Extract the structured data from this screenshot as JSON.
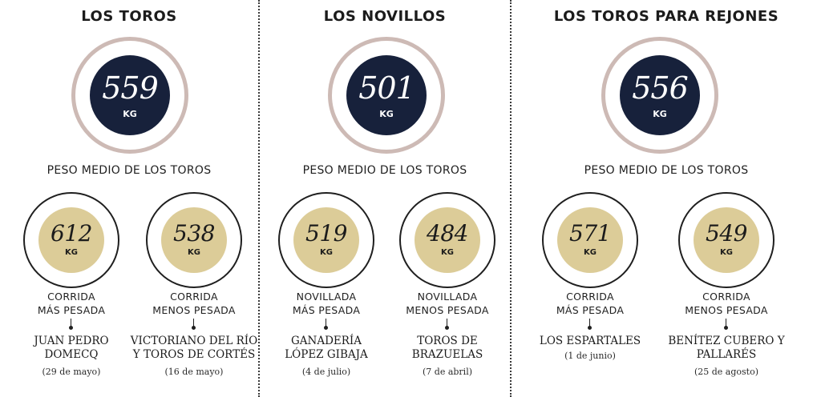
{
  "sections": [
    {
      "title": "LOS TOROS",
      "avg_value": "559",
      "avg_unit": "KG",
      "avg_label": "PESO MEDIO DE LOS TOROS",
      "items": [
        {
          "value": "612",
          "unit": "KG",
          "cat1": "CORRIDA",
          "cat2": "MÁS PESADA",
          "name1": "JUAN PEDRO",
          "name2": "DOMECQ",
          "date": "(29 de mayo)"
        },
        {
          "value": "538",
          "unit": "KG",
          "cat1": "CORRIDA",
          "cat2": "MENOS PESADA",
          "name1": "VICTORIANO DEL RÍO",
          "name2": "Y TOROS DE CORTÉS",
          "date": "(16 de mayo)"
        }
      ]
    },
    {
      "title": "LOS NOVILLOS",
      "avg_value": "501",
      "avg_unit": "KG",
      "avg_label": "PESO MEDIO DE LOS TOROS",
      "items": [
        {
          "value": "519",
          "unit": "KG",
          "cat1": "NOVILLADA",
          "cat2": "MÁS PESADA",
          "name1": "GANADERÍA",
          "name2": "LÓPEZ GIBAJA",
          "date": "(4 de julio)"
        },
        {
          "value": "484",
          "unit": "KG",
          "cat1": "NOVILLADA",
          "cat2": "MENOS PESADA",
          "name1": "TOROS DE",
          "name2": "BRAZUELAS",
          "date": "(7 de abril)"
        }
      ]
    },
    {
      "title": "LOS TOROS PARA REJONES",
      "avg_value": "556",
      "avg_unit": "KG",
      "avg_label": "PESO MEDIO DE LOS TOROS",
      "items": [
        {
          "value": "571",
          "unit": "KG",
          "cat1": "CORRIDA",
          "cat2": "MÁS PESADA",
          "name1": "LOS ESPARTALES",
          "name2": "",
          "date": "(1 de junio)"
        },
        {
          "value": "549",
          "unit": "KG",
          "cat1": "CORRIDA",
          "cat2": "MENOS PESADA",
          "name1": "BENÍTEZ CUBERO Y",
          "name2": "PALLARÉS",
          "date": "(25 de agosto)"
        }
      ]
    }
  ],
  "colors": {
    "navy_disc": "#17213b",
    "ring_pink": "#cdbab5",
    "gold_disc": "#dccc98",
    "text": "#1f1f1f"
  }
}
